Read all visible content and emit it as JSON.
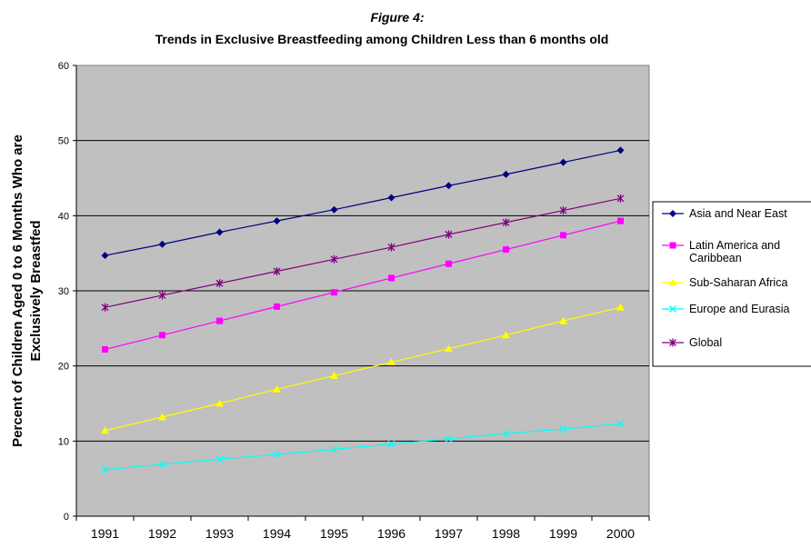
{
  "chart_data": {
    "type": "line",
    "title": "Figure 4:",
    "subtitle": "Trends in Exclusive Breastfeeding among Children Less than 6 months old",
    "ylabel": "Percent of Children Aged 0  to 6 Months Who are Exclusively Breastfed",
    "ylim": [
      0,
      60
    ],
    "yticks": [
      0,
      10,
      20,
      30,
      40,
      50,
      60
    ],
    "grid": true,
    "legend": "right",
    "categories": [
      "1991",
      "1992",
      "1993",
      "1994",
      "1995",
      "1996",
      "1997",
      "1998",
      "1999",
      "2000"
    ],
    "series": [
      {
        "name": "Asia and Near East",
        "color": "#000080",
        "marker": "diamond",
        "values": [
          34.7,
          36.2,
          37.8,
          39.3,
          40.8,
          42.4,
          44.0,
          45.5,
          47.1,
          48.7
        ]
      },
      {
        "name": "Latin America and Caribbean",
        "color": "#ff00ff",
        "marker": "square",
        "values": [
          22.2,
          24.1,
          26.0,
          27.9,
          29.8,
          31.7,
          33.6,
          35.5,
          37.4,
          39.3
        ]
      },
      {
        "name": "Sub-Saharan Africa",
        "color": "#ffff00",
        "marker": "triangle",
        "values": [
          11.4,
          13.2,
          15.0,
          16.9,
          18.7,
          20.5,
          22.3,
          24.1,
          26.0,
          27.8
        ]
      },
      {
        "name": "Europe and Eurasia",
        "color": "#00ffff",
        "marker": "x",
        "values": [
          6.2,
          6.9,
          7.6,
          8.2,
          8.9,
          9.6,
          10.3,
          11.0,
          11.6,
          12.3
        ]
      },
      {
        "name": "Global",
        "color": "#800080",
        "marker": "star",
        "values": [
          27.8,
          29.4,
          31.0,
          32.6,
          34.2,
          35.8,
          37.5,
          39.1,
          40.7,
          42.3
        ]
      }
    ]
  },
  "colors": {
    "plot_background": "#c0c0c0",
    "gridline": "#000000"
  }
}
